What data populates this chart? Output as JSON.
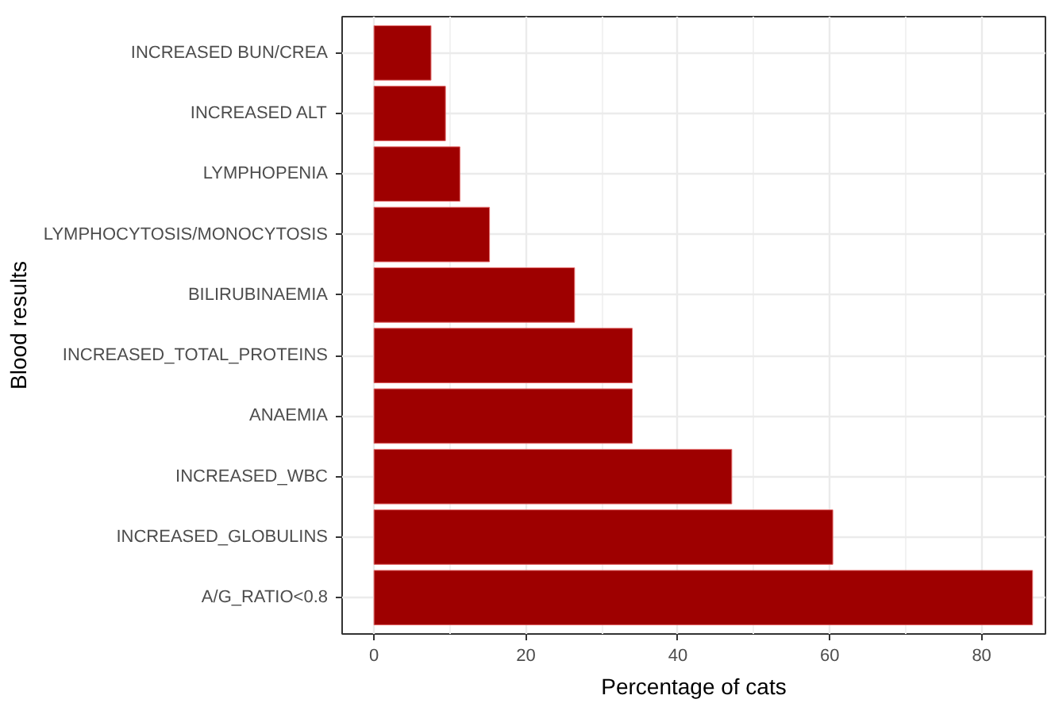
{
  "chart_data": {
    "type": "bar",
    "orientation": "horizontal",
    "xlabel": "Percentage of cats",
    "ylabel": "Blood results",
    "categories": [
      "INCREASED BUN/CREA",
      "INCREASED ALT",
      "LYMPHOPENIA",
      "LYMPHOCYTOSIS/MONOCYTOSIS",
      "BILIRUBINAEMIA",
      "INCREASED_TOTAL_PROTEINS",
      "ANAEMIA",
      "INCREASED_WBC",
      "INCREASED_GLOBULINS",
      "A/G_RATIO<0.8"
    ],
    "values": [
      7.5,
      9.4,
      11.3,
      15.2,
      26.4,
      34.0,
      34.0,
      47.1,
      60.4,
      86.7
    ],
    "color": "#9e0000",
    "xlim": [
      -4.2,
      88.4
    ],
    "xticks": [
      0,
      20,
      40,
      60,
      80
    ],
    "grid": true
  }
}
